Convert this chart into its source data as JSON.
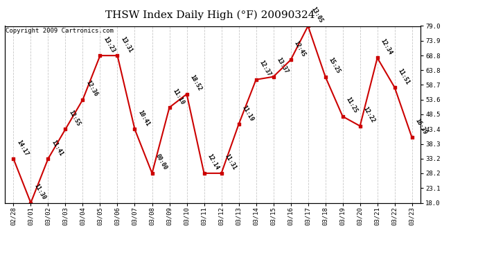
{
  "title": "THSW Index Daily High (°F) 20090324",
  "copyright": "Copyright 2009 Cartronics.com",
  "dates": [
    "02/28",
    "03/01",
    "03/02",
    "03/03",
    "03/04",
    "03/05",
    "03/06",
    "03/07",
    "03/08",
    "03/09",
    "03/10",
    "03/11",
    "03/12",
    "03/13",
    "03/14",
    "03/15",
    "03/16",
    "03/17",
    "03/18",
    "03/19",
    "03/20",
    "03/21",
    "03/22",
    "03/23"
  ],
  "values": [
    33.2,
    18.0,
    33.2,
    43.4,
    53.6,
    68.8,
    68.8,
    43.4,
    28.2,
    50.9,
    55.5,
    28.2,
    28.2,
    45.1,
    60.5,
    61.5,
    67.3,
    79.0,
    61.5,
    47.8,
    44.5,
    68.0,
    57.8,
    40.5
  ],
  "times": [
    "14:17",
    "11:30",
    "11:41",
    "12:55",
    "12:36",
    "13:23",
    "13:31",
    "10:41",
    "00:00",
    "11:10",
    "18:52",
    "12:14",
    "11:31",
    "11:19",
    "12:37",
    "13:37",
    "12:45",
    "13:05",
    "15:25",
    "11:25",
    "12:22",
    "12:34",
    "11:51",
    "16:39"
  ],
  "ylim_min": 18.0,
  "ylim_max": 79.0,
  "yticks": [
    18.0,
    23.1,
    28.2,
    33.2,
    38.3,
    43.4,
    48.5,
    53.6,
    58.7,
    63.8,
    68.8,
    73.9,
    79.0
  ],
  "line_color": "#cc0000",
  "marker_color": "#cc0000",
  "bg_color": "#ffffff",
  "grid_color": "#c8c8c8",
  "title_fontsize": 11,
  "label_fontsize": 6.0,
  "tick_fontsize": 6.5,
  "copyright_fontsize": 6.5
}
